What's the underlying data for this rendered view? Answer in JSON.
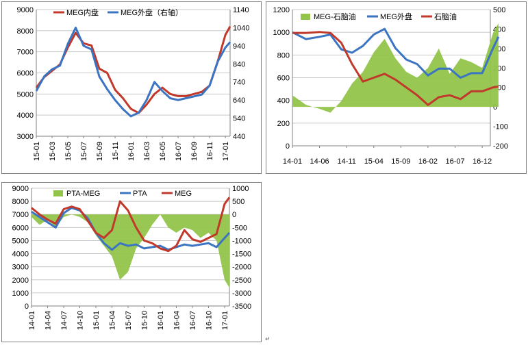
{
  "colors": {
    "red": "#c0392b",
    "blue": "#3a74c2",
    "green": "#92c44a",
    "grid": "#c8c8c8",
    "axis": "#808080"
  },
  "chart_data": [
    {
      "id": "c1",
      "type": "line",
      "legend_position": "top",
      "grid": true,
      "x_ticks": [
        "15-01",
        "15-03",
        "15-05",
        "15-07",
        "15-09",
        "15-11",
        "16-01",
        "16-03",
        "16-05",
        "16-07",
        "16-09",
        "16-11",
        "17-01"
      ],
      "y_left": {
        "min": 3000,
        "max": 9000,
        "ticks": [
          "3000",
          "4000",
          "5000",
          "6000",
          "7000",
          "8000",
          "9000"
        ]
      },
      "y_right": {
        "min": 440,
        "max": 1140,
        "ticks": [
          "440",
          "540",
          "640",
          "740",
          "840",
          "940",
          "1040",
          "1140"
        ]
      },
      "series": [
        {
          "name": "MEG内盘",
          "axis": "left",
          "color": "#c0392b",
          "x": [
            0,
            0.5,
            1,
            1.5,
            2,
            2.5,
            3,
            3.5,
            4,
            4.5,
            5,
            5.5,
            6,
            6.5,
            7,
            7.5,
            8,
            8.5,
            9,
            9.5,
            10,
            10.5,
            11,
            11.5,
            12,
            12.3
          ],
          "y": [
            5300,
            5800,
            6100,
            6400,
            7200,
            7900,
            7400,
            7300,
            6200,
            6000,
            5200,
            4800,
            4300,
            4100,
            4500,
            5000,
            5300,
            5000,
            4900,
            4900,
            5000,
            5100,
            5400,
            6500,
            7800,
            8200
          ]
        },
        {
          "name": "MEG外盘（右轴）",
          "axis": "right",
          "color": "#3a74c2",
          "x": [
            0,
            0.5,
            1,
            1.5,
            2,
            2.5,
            3,
            3.5,
            4,
            4.5,
            5,
            5.5,
            6,
            6.5,
            7,
            7.5,
            8,
            8.5,
            9,
            9.5,
            10,
            10.5,
            11,
            11.5,
            12,
            12.3
          ],
          "y": [
            690,
            770,
            810,
            830,
            950,
            1040,
            940,
            920,
            770,
            700,
            640,
            590,
            550,
            570,
            640,
            740,
            690,
            650,
            640,
            650,
            660,
            670,
            720,
            850,
            930,
            960
          ]
        }
      ]
    },
    {
      "id": "c2",
      "type": "line",
      "legend_position": "top",
      "grid": true,
      "x_ticks": [
        "14-01",
        "14-06",
        "14-11",
        "15-04",
        "15-09",
        "16-02",
        "16-07",
        "16-12"
      ],
      "y_left": {
        "min": 0,
        "max": 1200,
        "ticks": [
          "0",
          "200",
          "400",
          "600",
          "800",
          "1000",
          "1200"
        ]
      },
      "y_right": {
        "min": -200,
        "max": 500,
        "ticks": [
          "-200",
          "-100",
          "0",
          "100",
          "200",
          "300",
          "400",
          "500"
        ]
      },
      "series": [
        {
          "name": "MEG-石脑油",
          "axis": "right",
          "color": "#92c44a",
          "kind": "area",
          "x": [
            0,
            0.5,
            1,
            1.4,
            1.8,
            2.2,
            2.6,
            3,
            3.4,
            3.8,
            4.2,
            4.6,
            5,
            5.4,
            5.8,
            6.2,
            6.6,
            7,
            7.4,
            7.6
          ],
          "y": [
            60,
            10,
            -10,
            -30,
            30,
            120,
            180,
            280,
            350,
            250,
            180,
            150,
            200,
            300,
            170,
            250,
            230,
            200,
            380,
            430
          ]
        },
        {
          "name": "MEG外盘",
          "axis": "left",
          "color": "#3a74c2",
          "x": [
            0,
            0.5,
            1,
            1.4,
            1.8,
            2.2,
            2.6,
            3,
            3.4,
            3.8,
            4.2,
            4.6,
            5,
            5.4,
            5.8,
            6.2,
            6.6,
            7,
            7.4,
            7.6
          ],
          "y": [
            1000,
            940,
            960,
            980,
            850,
            820,
            880,
            980,
            1030,
            860,
            760,
            720,
            620,
            680,
            680,
            600,
            640,
            640,
            860,
            960
          ]
        },
        {
          "name": "石脑油",
          "axis": "right",
          "color": "#c0392b",
          "x": [
            0,
            0.5,
            1,
            1.4,
            1.8,
            2.2,
            2.6,
            3,
            3.4,
            3.8,
            4.2,
            4.6,
            5,
            5.4,
            5.8,
            6.2,
            6.6,
            7,
            7.4,
            7.6
          ],
          "y": [
            380,
            380,
            385,
            380,
            330,
            220,
            130,
            150,
            170,
            140,
            100,
            60,
            10,
            50,
            60,
            40,
            80,
            80,
            100,
            105
          ]
        }
      ]
    },
    {
      "id": "c3",
      "type": "line",
      "legend_position": "top",
      "grid": true,
      "x_ticks": [
        "14-01",
        "14-04",
        "14-07",
        "14-10",
        "15-01",
        "15-04",
        "15-07",
        "15-10",
        "16-01",
        "16-04",
        "16-07",
        "16-10",
        "17-01"
      ],
      "y_left": {
        "min": 0,
        "max": 9000,
        "ticks": [
          "0",
          "1000",
          "2000",
          "3000",
          "4000",
          "5000",
          "6000",
          "7000",
          "8000",
          "9000"
        ]
      },
      "y_right": {
        "min": -3500,
        "max": 1000,
        "ticks": [
          "-3500",
          "-3000",
          "-2500",
          "-2000",
          "-1500",
          "-1000",
          "-500",
          "0",
          "500",
          "1000"
        ]
      },
      "series": [
        {
          "name": "PTA-MEG",
          "axis": "right",
          "color": "#92c44a",
          "kind": "area",
          "x": [
            0,
            0.5,
            1,
            1.5,
            2,
            2.5,
            3,
            3.5,
            4,
            4.5,
            5,
            5.5,
            6,
            6.5,
            7,
            7.5,
            8,
            8.5,
            9,
            9.5,
            10,
            10.5,
            11,
            11.5,
            12,
            12.3
          ],
          "y": [
            -100,
            -400,
            -200,
            -500,
            -100,
            0,
            -100,
            -300,
            -800,
            -1200,
            -1600,
            -2500,
            -2200,
            -1300,
            -900,
            -400,
            0,
            -500,
            -700,
            -500,
            -600,
            -900,
            -700,
            -1000,
            -2500,
            -2800
          ]
        },
        {
          "name": "PTA",
          "axis": "left",
          "color": "#3a74c2",
          "x": [
            0,
            0.5,
            1,
            1.5,
            2,
            2.5,
            3,
            3.5,
            4,
            4.5,
            5,
            5.5,
            6,
            6.5,
            7,
            7.5,
            8,
            8.5,
            9,
            9.5,
            10,
            10.5,
            11,
            11.5,
            12,
            12.3
          ],
          "y": [
            7200,
            6800,
            6400,
            6000,
            7100,
            7500,
            7300,
            6700,
            5600,
            4800,
            4300,
            4800,
            4600,
            4700,
            4400,
            4500,
            4600,
            4300,
            4500,
            4700,
            4600,
            4700,
            4800,
            4500,
            5200,
            5600
          ]
        },
        {
          "name": "MEG",
          "axis": "left",
          "color": "#c0392b",
          "x": [
            0,
            0.5,
            1,
            1.5,
            2,
            2.5,
            3,
            3.5,
            4,
            4.5,
            5,
            5.5,
            6,
            6.5,
            7,
            7.5,
            8,
            8.5,
            9,
            9.5,
            10,
            10.5,
            11,
            11.5,
            12,
            12.3
          ],
          "y": [
            7500,
            7000,
            6600,
            6300,
            7400,
            7600,
            7400,
            6500,
            5600,
            5200,
            5800,
            8000,
            7300,
            6000,
            5000,
            4800,
            4400,
            4200,
            4600,
            5800,
            5100,
            4900,
            5200,
            5500,
            7800,
            8300
          ]
        }
      ]
    }
  ]
}
